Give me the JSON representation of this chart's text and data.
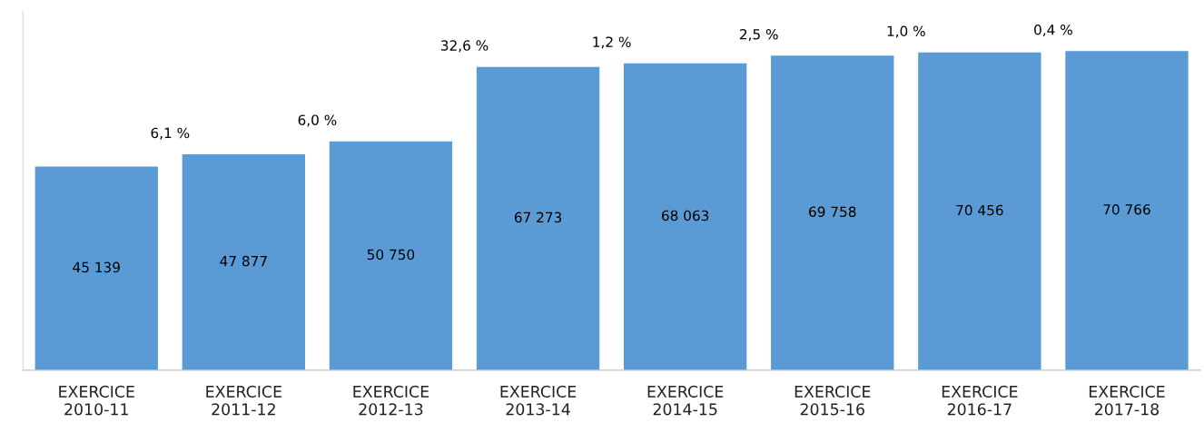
{
  "chart_data": {
    "type": "bar",
    "categories": [
      "EXERCICE\n2010-11",
      "EXERCICE\n2011-12",
      "EXERCICE\n2012-13",
      "EXERCICE\n2013-14",
      "EXERCICE\n2014-15",
      "EXERCICE\n2015-16",
      "EXERCICE\n2016-17",
      "EXERCICE\n2017-18"
    ],
    "values": [
      45139,
      47877,
      50750,
      67273,
      68063,
      69758,
      70456,
      70766
    ],
    "value_labels": [
      "45 139",
      "47 877",
      "50 750",
      "67 273",
      "68 063",
      "69 758",
      "70 456",
      "70 766"
    ],
    "color": "#5b9bd5",
    "ylim": [
      0,
      79700
    ],
    "tick_labels": "x",
    "grid": false,
    "legend": false,
    "annotations": [
      "6,1 %",
      "6,0 %",
      "32,6 %",
      "1,2 %",
      "2,5 %",
      "1,0 %",
      "0,4 %"
    ]
  }
}
